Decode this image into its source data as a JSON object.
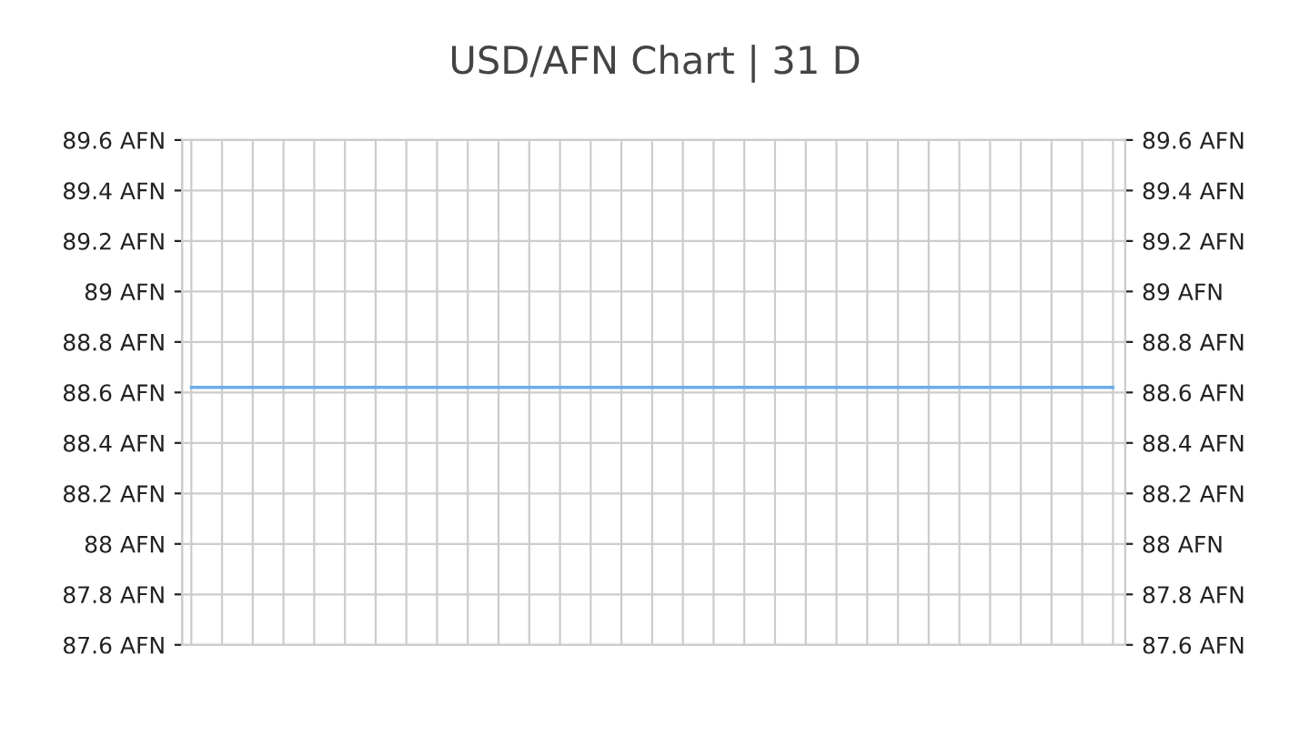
{
  "chart_data": {
    "type": "line",
    "title": "USD/AFN Chart | 31 D",
    "categories": [
      null,
      null,
      null,
      null,
      null,
      null,
      null,
      null,
      null,
      null,
      null,
      null,
      null,
      null,
      null,
      null,
      null,
      null,
      null,
      null,
      null,
      null,
      null,
      null,
      null,
      null,
      null,
      null,
      null,
      null,
      null
    ],
    "series": [
      {
        "color": "#6aaee8",
        "values": [
          88.62,
          88.62,
          88.62,
          88.62,
          88.62,
          88.62,
          88.62,
          88.62,
          88.62,
          88.62,
          88.62,
          88.62,
          88.62,
          88.62,
          88.62,
          88.62,
          88.62,
          88.62,
          88.62,
          88.62,
          88.62,
          88.62,
          88.62,
          88.62,
          88.62,
          88.62,
          88.62,
          88.62,
          88.62,
          88.62,
          88.62
        ]
      }
    ],
    "ylim": [
      87.6,
      89.6
    ],
    "yticks": [
      {
        "value": 87.6,
        "label": "87.6 AFN"
      },
      {
        "value": 87.8,
        "label": "87.8 AFN"
      },
      {
        "value": 88,
        "label": "88 AFN"
      },
      {
        "value": 88.2,
        "label": "88.2 AFN"
      },
      {
        "value": 88.4,
        "label": "88.4 AFN"
      },
      {
        "value": 88.6,
        "label": "88.6 AFN"
      },
      {
        "value": 88.8,
        "label": "88.8 AFN"
      },
      {
        "value": 89,
        "label": "89 AFN"
      },
      {
        "value": 89.2,
        "label": "89.2 AFN"
      },
      {
        "value": 89.4,
        "label": "89.4 AFN"
      },
      {
        "value": 89.6,
        "label": "89.6 AFN"
      }
    ],
    "y2lim": [
      87.6,
      89.6
    ],
    "y2ticks": [
      {
        "value": 87.6,
        "label": "87.6 AFN"
      },
      {
        "value": 87.8,
        "label": "87.8 AFN"
      },
      {
        "value": 88,
        "label": "88 AFN"
      },
      {
        "value": 88.2,
        "label": "88.2 AFN"
      },
      {
        "value": 88.4,
        "label": "88.4 AFN"
      },
      {
        "value": 88.6,
        "label": "88.6 AFN"
      },
      {
        "value": 88.8,
        "label": "88.8 AFN"
      },
      {
        "value": 89,
        "label": "89 AFN"
      },
      {
        "value": 89.2,
        "label": "89.2 AFN"
      },
      {
        "value": 89.4,
        "label": "89.4 AFN"
      },
      {
        "value": 89.6,
        "label": "89.6 AFN"
      }
    ],
    "grid": true,
    "marker": "none",
    "line_style": "solid"
  }
}
